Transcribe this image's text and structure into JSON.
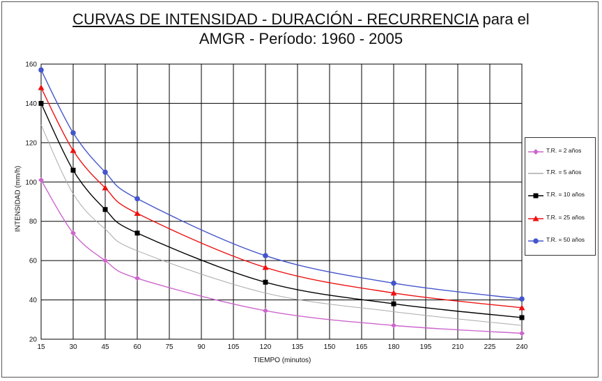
{
  "title": {
    "line1_underlined": "CURVAS DE INTENSIDAD - DURACIÓN - RECURRENCIA",
    "line1_rest": " para el",
    "line2": "AMGR - Período: 1960 - 2005"
  },
  "chart_data": {
    "type": "line",
    "xlabel": "TIEMPO (minutos)",
    "ylabel": "INTENSIDAD (mm/h)",
    "xlim": [
      15,
      240
    ],
    "ylim": [
      20,
      160
    ],
    "x_ticks": [
      15,
      30,
      45,
      60,
      75,
      90,
      105,
      120,
      135,
      150,
      165,
      180,
      195,
      210,
      225,
      240
    ],
    "y_ticks": [
      20,
      40,
      60,
      80,
      100,
      120,
      140,
      160
    ],
    "grid": true,
    "legend_position": "right",
    "x": [
      15,
      30,
      45,
      60,
      120,
      180,
      240
    ],
    "series": [
      {
        "name": "T.R. = 2 años",
        "color": "#cc66cc",
        "marker": "diamond",
        "values": [
          101,
          74,
          60,
          51,
          34.5,
          27,
          23
        ]
      },
      {
        "name": "T.R. = 5 años",
        "color": "#aaaaaa",
        "marker": "none",
        "values": [
          129,
          94,
          76,
          65,
          43.5,
          34,
          27
        ]
      },
      {
        "name": "T.R. = 10 años",
        "color": "#000000",
        "marker": "square",
        "values": [
          140,
          106,
          86,
          74,
          49,
          38,
          31
        ]
      },
      {
        "name": "T.R. = 25 años",
        "color": "#ee1111",
        "marker": "triangle",
        "values": [
          148,
          116,
          97,
          84,
          56.5,
          43.5,
          36
        ]
      },
      {
        "name": "T.R. = 50 años",
        "color": "#4455cc",
        "marker": "circle",
        "values": [
          157,
          125,
          105,
          91.5,
          62.5,
          48.5,
          40.5
        ]
      }
    ]
  }
}
